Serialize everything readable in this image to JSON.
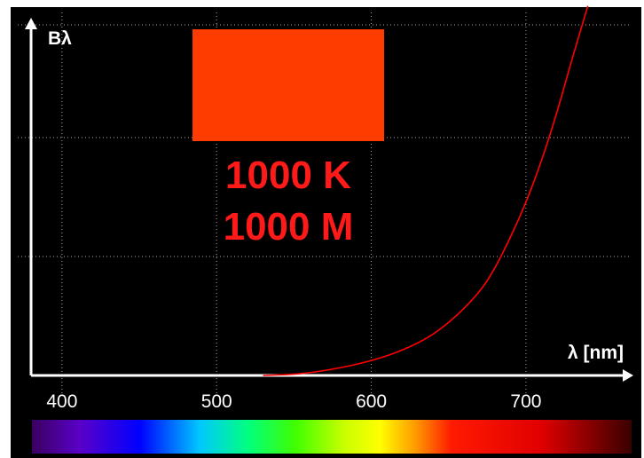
{
  "chart_data": {
    "type": "line",
    "xlabel": "λ [nm]",
    "ylabel": "Bλ",
    "xlim": [
      380,
      770
    ],
    "ylim": [
      0,
      1
    ],
    "x_ticks": [
      "400",
      "500",
      "600",
      "700"
    ],
    "grid": true,
    "temperature_label": "1000 K",
    "scale_label": "1000 M",
    "swatch_color": "#ff3c00",
    "curve_color": "#ff0000",
    "background_color": "#000000",
    "series": [
      {
        "x": [
          530,
          560,
          600,
          630,
          650,
          670,
          680,
          690,
          700,
          710,
          720,
          730,
          740
        ],
        "values": [
          0.0,
          0.005,
          0.04,
          0.09,
          0.15,
          0.24,
          0.31,
          0.4,
          0.5,
          0.62,
          0.76,
          0.92,
          1.07
        ]
      }
    ]
  }
}
